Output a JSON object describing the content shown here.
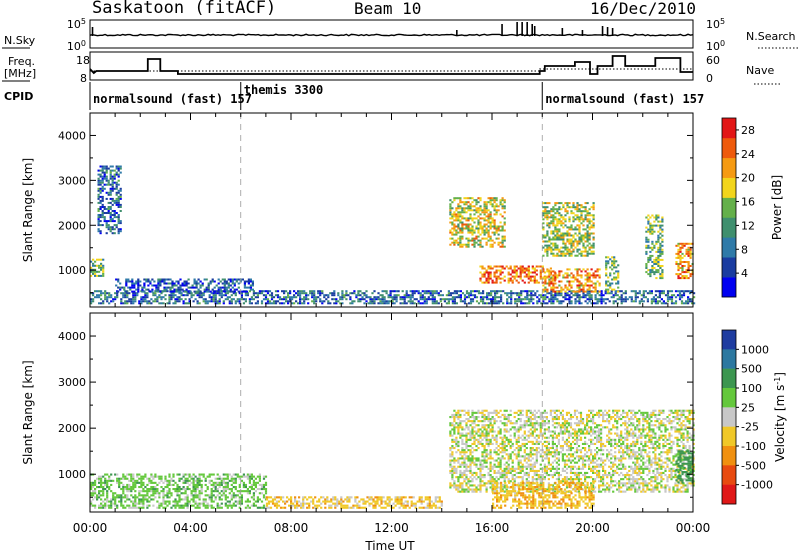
{
  "header": {
    "station": "Saskatoon (fitACF)",
    "beam": "Beam 10",
    "date": "16/Dec/2010"
  },
  "panels": {
    "nsky": {
      "label": "N.Sky",
      "tick_top": "10^5",
      "tick_bottom": "10^0",
      "right_label": "N.Search",
      "right_tick_top": "10^5",
      "right_tick_bottom": "10^0"
    },
    "freq": {
      "label_line1": "Freq.",
      "label_line2": "[MHz]",
      "tick_top": "18",
      "tick_bottom": "8",
      "right_label": "Nave",
      "right_tick_top": "60",
      "right_tick_bottom": "0"
    },
    "cpid": {
      "label": "CPID",
      "programs": [
        {
          "name": "normalsound (fast)",
          "id": "157",
          "start": 0,
          "end": 6
        },
        {
          "name": "themis",
          "id": "3300",
          "start": 6,
          "end": 18
        },
        {
          "name": "normalsound (fast)",
          "id": "157",
          "start": 18,
          "end": 24
        }
      ]
    }
  },
  "chart_data": [
    {
      "type": "heatmap",
      "title": "Power",
      "xlabel": "Time UT",
      "ylabel": "Slant Range [km]",
      "xlim": [
        0,
        24
      ],
      "ylim": [
        180,
        4500
      ],
      "x_tick_labels": [
        "00:00",
        "04:00",
        "08:00",
        "12:00",
        "16:00",
        "20:00",
        "00:00"
      ],
      "y_ticks": [
        1000,
        2000,
        3000,
        4000
      ],
      "colorbar": {
        "label": "Power [dB]",
        "ticks": [
          4,
          8,
          12,
          16,
          20,
          24,
          28
        ],
        "range": [
          0,
          30
        ],
        "colors": [
          "#0000f0",
          "#1a3ca0",
          "#2f7aa8",
          "#3f8f6e",
          "#64b04a",
          "#f2d51c",
          "#f59a12",
          "#ee5a0c",
          "#e21616"
        ]
      },
      "echo_regions": [
        {
          "t": [
            0.0,
            24.0
          ],
          "r": [
            240,
            520
          ],
          "power_db": 8
        },
        {
          "t": [
            0.0,
            0.5
          ],
          "r": [
            850,
            1250
          ],
          "power_db": 14
        },
        {
          "t": [
            0.3,
            1.2
          ],
          "r": [
            1800,
            3300
          ],
          "power_db": 8
        },
        {
          "t": [
            1.0,
            6.5
          ],
          "r": [
            500,
            800
          ],
          "power_db": 6
        },
        {
          "t": [
            14.3,
            16.5
          ],
          "r": [
            1500,
            2600
          ],
          "power_db": 18
        },
        {
          "t": [
            15.5,
            18.5
          ],
          "r": [
            700,
            1100
          ],
          "power_db": 24
        },
        {
          "t": [
            18.0,
            20.3
          ],
          "r": [
            500,
            1000
          ],
          "power_db": 22
        },
        {
          "t": [
            18.0,
            20.0
          ],
          "r": [
            1300,
            2500
          ],
          "power_db": 16
        },
        {
          "t": [
            20.5,
            21.0
          ],
          "r": [
            500,
            1300
          ],
          "power_db": 14
        },
        {
          "t": [
            22.1,
            22.8
          ],
          "r": [
            800,
            2200
          ],
          "power_db": 14
        },
        {
          "t": [
            23.3,
            24.0
          ],
          "r": [
            800,
            1600
          ],
          "power_db": 22
        }
      ]
    },
    {
      "type": "heatmap",
      "title": "Velocity",
      "xlabel": "Time UT",
      "ylabel": "Slant Range [km]",
      "xlim": [
        0,
        24
      ],
      "ylim": [
        180,
        4500
      ],
      "x_tick_labels": [
        "00:00",
        "04:00",
        "08:00",
        "12:00",
        "16:00",
        "20:00",
        "00:00"
      ],
      "y_ticks": [
        1000,
        2000,
        3000,
        4000
      ],
      "colorbar": {
        "label": "Velocity [m s^-1]",
        "tick_labels": [
          "1000",
          "500",
          "100",
          "25",
          "-25",
          "-100",
          "-500",
          "-1000"
        ],
        "colors": [
          "#1e3ca0",
          "#2c78a0",
          "#3c9650",
          "#64c83c",
          "#c8c8c8",
          "#f0c828",
          "#f09010",
          "#e84a10",
          "#e01818"
        ]
      },
      "echo_regions": [
        {
          "t": [
            0.0,
            7.0
          ],
          "r": [
            250,
            1000
          ],
          "velocity_ms": 60
        },
        {
          "t": [
            7.0,
            14.0
          ],
          "r": [
            250,
            500
          ],
          "velocity_ms": -60
        },
        {
          "t": [
            14.3,
            24.0
          ],
          "r": [
            600,
            2400
          ],
          "velocity_ms": 0
        },
        {
          "t": [
            16.0,
            20.0
          ],
          "r": [
            250,
            800
          ],
          "velocity_ms": -80
        },
        {
          "t": [
            23.3,
            24.0
          ],
          "r": [
            800,
            1500
          ],
          "velocity_ms": 150
        }
      ]
    }
  ]
}
